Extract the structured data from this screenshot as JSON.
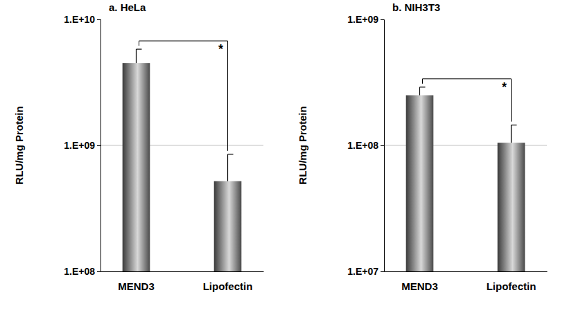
{
  "chart_data": [
    {
      "type": "bar",
      "title": "a. HeLa",
      "y_label": "RLU/mg Protein",
      "categories": [
        "MEND3",
        "Lipofectin"
      ],
      "values": [
        4500000000,
        520000000
      ],
      "errors": [
        1300000000,
        330000000
      ],
      "log": "y",
      "grid": true,
      "ylim": [
        100000000,
        10000000000
      ],
      "yticks": [
        {
          "value": 100000000,
          "label": "1.E+08"
        },
        {
          "value": 1000000000,
          "label": "1.E+09"
        },
        {
          "value": 10000000000,
          "label": "1.E+10"
        }
      ],
      "annotations": [
        "*"
      ]
    },
    {
      "type": "bar",
      "title": "b. NIH3T3",
      "y_label": "RLU/mg Protein",
      "categories": [
        "MEND3",
        "Lipofectin"
      ],
      "values": [
        250000000,
        105000000
      ],
      "errors": [
        40000000,
        40000000
      ],
      "log": "y",
      "grid": true,
      "ylim": [
        10000000,
        1000000000
      ],
      "yticks": [
        {
          "value": 10000000,
          "label": "1.E+07"
        },
        {
          "value": 100000000,
          "label": "1.E+08"
        },
        {
          "value": 1000000000,
          "label": "1.E+09"
        }
      ],
      "annotations": [
        "*"
      ]
    }
  ]
}
